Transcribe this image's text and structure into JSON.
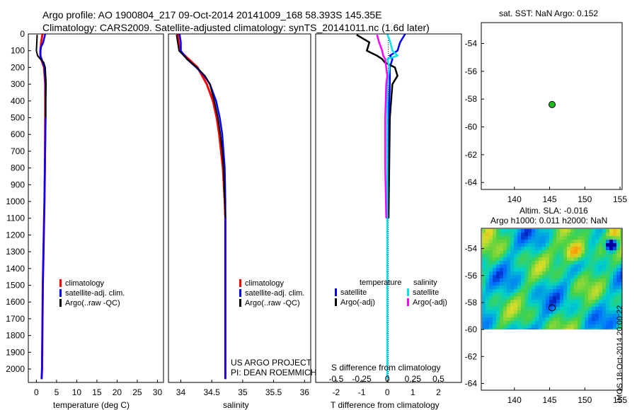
{
  "header": {
    "line1": "Argo profile: AO 1900804_217 09-Oct-2014 20141009_168 58.393S 145.35E",
    "line2": "Climatology: CARS2009. Satellite-adjusted climatology: synTS_20141011.nc (1.6d later)"
  },
  "colors": {
    "climatology": "#ff0000",
    "satellite": "#0000ff",
    "argo": "#000000",
    "t_sat": "#0000ff",
    "t_argo": "#000000",
    "s_sat": "#00e5ee",
    "s_argo": "#ff00ff",
    "float_marker": "#22bb22"
  },
  "depth_axis": {
    "ticks": [
      0,
      100,
      200,
      300,
      400,
      500,
      600,
      700,
      800,
      900,
      1000,
      1100,
      1200,
      1300,
      1400,
      1500,
      1600,
      1700,
      1800,
      1900,
      2000
    ],
    "range": [
      0,
      2080
    ]
  },
  "temperature_panel": {
    "xlabel": "temperature (deg C)",
    "xticks": [
      0,
      5,
      10,
      15,
      20,
      25,
      30
    ],
    "xlim": [
      -2,
      31.5
    ],
    "legend": [
      "climatology",
      "satellite-adj. clim.",
      "Argo(..raw -QC)"
    ]
  },
  "salinity_panel": {
    "xlabel": "salinity",
    "xticks": [
      34,
      34.5,
      35,
      35.5,
      36
    ],
    "xlim": [
      33.8,
      36.1
    ],
    "legend": [
      "climatology",
      "satellite-adj. clim.",
      "Argo(..raw -QC)"
    ],
    "note_line1": "US ARGO PROJECT",
    "note_line2": "PI: DEAN ROEMMICH"
  },
  "difference_panel": {
    "xlabel": "T difference from climatology",
    "toplabel": "S difference from climatology",
    "t_ticks": [
      -2,
      -1,
      0,
      1,
      2
    ],
    "t_labels": [
      "-2",
      "-1",
      "0",
      "1",
      "2"
    ],
    "t_lim": [
      -2.8,
      2.9
    ],
    "s_ticks": [
      -0.5,
      -0.25,
      0,
      0.25,
      0.5
    ],
    "s_labels": [
      "-0.5",
      "-0.25",
      "0",
      "0.25",
      "0.5"
    ],
    "s_lim": [
      -0.7,
      0.725
    ],
    "legend_t_title": "temperature",
    "legend_s_title": "salinity",
    "legend_t": [
      "satellite",
      "Argo(-adj)"
    ],
    "legend_s": [
      "satellite",
      "Argo(-adj)"
    ]
  },
  "sst_map": {
    "title": "sat. SST: NaN  Argo: 0.152",
    "xticks": [
      140,
      145,
      150,
      155
    ],
    "yticks": [
      -54,
      -56,
      -58,
      -60,
      -62,
      -64
    ],
    "xlim": [
      135.3,
      155.3
    ],
    "ylim": [
      -64.5,
      -52.5
    ],
    "float_lon": 145.35,
    "float_lat": -58.393
  },
  "sla_map": {
    "title_line1": "Altim. SLA: -0.016",
    "title_line2": "Argo h1000: 0.011 h2000: NaN",
    "xticks": [
      140,
      145,
      150,
      155
    ],
    "yticks": [
      -54,
      -56,
      -58,
      -60,
      -62,
      -64
    ],
    "xlim": [
      135.3,
      155.3
    ],
    "ylim": [
      -64.5,
      -52.5
    ],
    "data_lat_min": -60,
    "float_lon": 145.35,
    "float_lat": -58.393
  },
  "credit": "IMOS 18-Oct-2014 20:00:22",
  "chart_data": [
    {
      "type": "line",
      "panel": "temperature",
      "xlabel": "temperature (deg C)",
      "ylim": [
        2080,
        0
      ],
      "series": [
        {
          "name": "climatology",
          "depth": [
            0,
            50,
            100,
            130,
            150,
            200,
            300,
            500,
            800,
            1000,
            1500,
            2000,
            2060
          ],
          "values": [
            1.5,
            1.2,
            1.0,
            1.0,
            1.2,
            1.9,
            2.2,
            2.2,
            2.1,
            2.0,
            1.6,
            1.4,
            1.3
          ]
        },
        {
          "name": "satellite-adj. clim.",
          "depth": [
            0,
            50,
            80,
            100,
            130,
            150,
            200,
            300,
            500,
            800,
            1000,
            1500,
            2000,
            2060
          ],
          "values": [
            2.2,
            1.7,
            1.1,
            1.0,
            1.0,
            1.3,
            2.0,
            2.3,
            2.3,
            2.1,
            2.0,
            1.6,
            1.4,
            1.3
          ]
        },
        {
          "name": "Argo(..raw -QC)",
          "depth": [
            5,
            50,
            100,
            130,
            150,
            170,
            200,
            250,
            300,
            400,
            500
          ],
          "values": [
            0.2,
            0.1,
            0.0,
            0.3,
            1.0,
            1.8,
            2.2,
            2.3,
            2.4,
            2.3,
            2.3
          ]
        }
      ]
    },
    {
      "type": "line",
      "panel": "salinity",
      "xlabel": "salinity",
      "ylim": [
        2080,
        0
      ],
      "series": [
        {
          "name": "climatology",
          "depth": [
            0,
            100,
            200,
            300,
            400,
            500,
            600,
            800,
            1000,
            1100,
            1500,
            2000,
            2060
          ],
          "values": [
            33.95,
            33.98,
            34.27,
            34.42,
            34.52,
            34.58,
            34.62,
            34.68,
            34.71,
            34.72,
            34.72,
            34.72,
            34.72
          ]
        },
        {
          "name": "satellite-adj. clim.",
          "depth": [
            0,
            50,
            100,
            150,
            200,
            250,
            300,
            400,
            500,
            600,
            800,
            1000,
            1500,
            2000,
            2060
          ],
          "values": [
            33.98,
            34.0,
            34.0,
            34.1,
            34.25,
            34.38,
            34.47,
            34.57,
            34.63,
            34.67,
            34.71,
            34.72,
            34.72,
            34.72,
            34.72
          ]
        },
        {
          "name": "Argo(..raw -QC)",
          "depth": [
            5,
            50,
            100,
            150,
            200,
            250,
            300,
            400,
            500,
            600,
            700,
            800,
            900,
            1000,
            1100
          ],
          "values": [
            33.93,
            33.95,
            33.97,
            34.1,
            34.26,
            34.39,
            34.47,
            34.54,
            34.6,
            34.64,
            34.67,
            34.69,
            34.7,
            34.71,
            34.72
          ]
        }
      ]
    },
    {
      "type": "line",
      "panel": "difference",
      "xlabel": "T difference from climatology",
      "ylim": [
        2080,
        0
      ],
      "series": [
        {
          "name": "temperature satellite",
          "axis": "T",
          "depth": [
            0,
            50,
            100,
            130,
            150,
            200,
            300,
            500,
            1000,
            2060
          ],
          "values": [
            0.7,
            0.5,
            0.4,
            0.1,
            0.2,
            0.1,
            0.1,
            0.05,
            0.0,
            0.0
          ]
        },
        {
          "name": "temperature Argo(-adj)",
          "axis": "T",
          "depth": [
            5,
            50,
            100,
            130,
            150,
            170,
            200,
            250,
            300,
            500,
            1100
          ],
          "values": [
            -1.2,
            -0.7,
            -0.8,
            -0.4,
            -0.2,
            -0.1,
            0.3,
            0.4,
            0.2,
            0.1,
            0.05
          ]
        },
        {
          "name": "salinity satellite",
          "axis": "S",
          "depth": [
            0,
            50,
            100,
            130,
            150,
            200,
            300,
            500,
            1000,
            2060
          ],
          "values": [
            0.0,
            0.03,
            0.05,
            0.1,
            0.0,
            0.02,
            0.0,
            0.0,
            0.0,
            0.0
          ]
        },
        {
          "name": "salinity Argo(-adj)",
          "axis": "S",
          "depth": [
            5,
            50,
            100,
            130,
            150,
            200,
            250,
            300,
            500,
            800,
            1100
          ],
          "values": [
            -0.1,
            -0.08,
            -0.05,
            -0.04,
            -0.02,
            -0.01,
            0.0,
            -0.01,
            -0.02,
            -0.02,
            -0.01
          ]
        }
      ]
    },
    {
      "type": "scatter",
      "panel": "sst_map",
      "title": "sat. SST: NaN  Argo: 0.152",
      "x": [
        145.35
      ],
      "y": [
        -58.393
      ],
      "xlim": [
        135.3,
        155.3
      ],
      "ylim": [
        -64.5,
        -52.5
      ]
    },
    {
      "type": "heatmap",
      "panel": "sla_map",
      "title": "Altim. SLA: -0.016",
      "x": [
        145.35
      ],
      "y": [
        -58.393
      ],
      "xlim": [
        135.3,
        155.3
      ],
      "ylim": [
        -64.5,
        -52.5
      ]
    }
  ]
}
